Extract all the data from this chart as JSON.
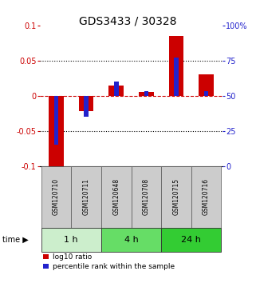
{
  "title": "GDS3433 / 30328",
  "samples": [
    "GSM120710",
    "GSM120711",
    "GSM120648",
    "GSM120708",
    "GSM120715",
    "GSM120716"
  ],
  "log10_ratio": [
    -0.102,
    -0.022,
    0.015,
    0.005,
    0.085,
    0.03
  ],
  "percentile_rank": [
    15,
    35,
    60,
    53,
    77,
    53
  ],
  "ylim_left": [
    -0.1,
    0.1
  ],
  "ylim_right": [
    0,
    100
  ],
  "yticks_left": [
    -0.1,
    -0.05,
    0,
    0.05,
    0.1
  ],
  "ytick_labels_left": [
    "-0.1",
    "-0.05",
    "0",
    "0.05",
    "0.1"
  ],
  "yticks_right": [
    0,
    25,
    50,
    75,
    100
  ],
  "ytick_labels_right": [
    "0",
    "25",
    "50",
    "75",
    "100%"
  ],
  "hlines_dotted": [
    0.05,
    -0.05
  ],
  "hline_red": 0,
  "red_bar_width": 0.5,
  "blue_bar_width": 0.15,
  "red_color": "#cc0000",
  "blue_color": "#2222cc",
  "time_groups": [
    {
      "label": "1 h",
      "samples": [
        0,
        1
      ],
      "color": "#cceecc"
    },
    {
      "label": "4 h",
      "samples": [
        2,
        3
      ],
      "color": "#66dd66"
    },
    {
      "label": "24 h",
      "samples": [
        4,
        5
      ],
      "color": "#33cc33"
    }
  ],
  "sample_box_color": "#cccccc",
  "legend_red_label": "log10 ratio",
  "legend_blue_label": "percentile rank within the sample",
  "title_fontsize": 10,
  "tick_fontsize": 7,
  "sample_fontsize": 5.5,
  "time_fontsize": 8,
  "legend_fontsize": 6.5
}
